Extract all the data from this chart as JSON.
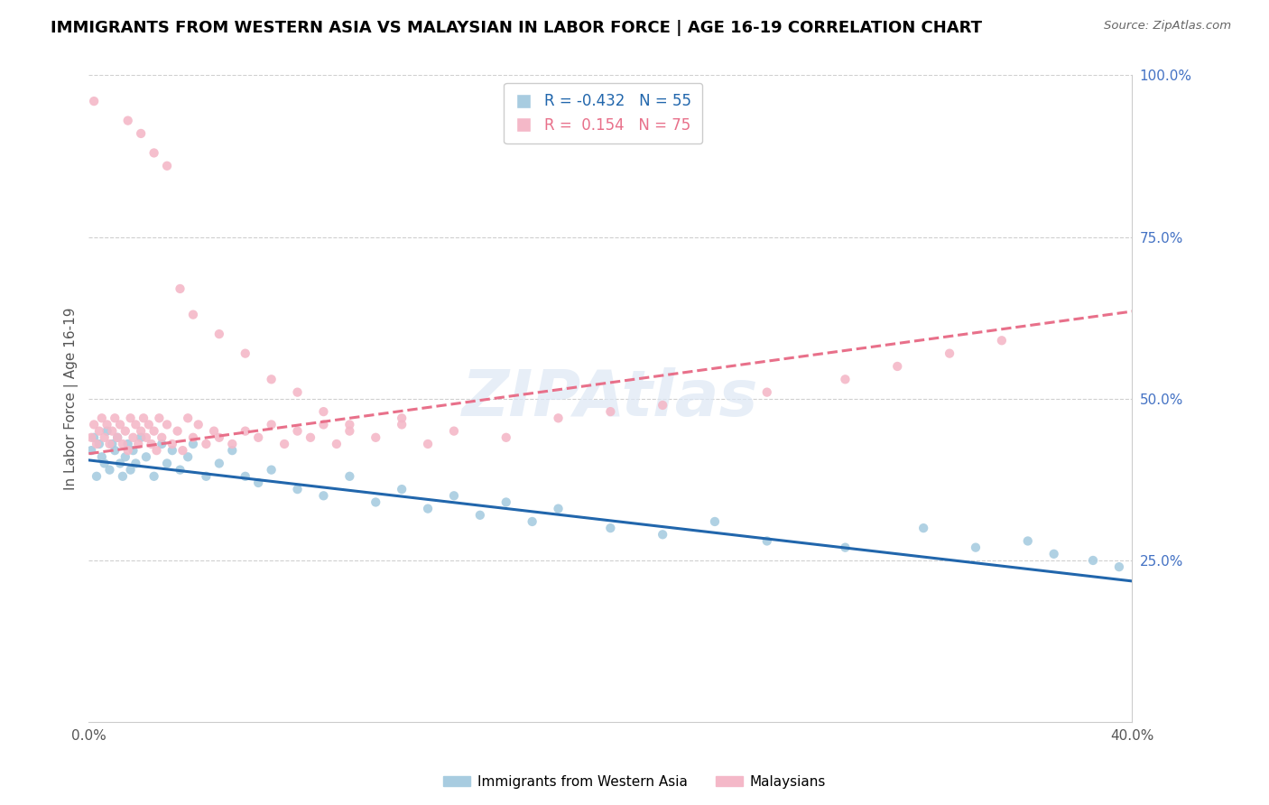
{
  "title": "IMMIGRANTS FROM WESTERN ASIA VS MALAYSIAN IN LABOR FORCE | AGE 16-19 CORRELATION CHART",
  "source_text": "Source: ZipAtlas.com",
  "ylabel": "In Labor Force | Age 16-19",
  "xlim": [
    0.0,
    0.4
  ],
  "ylim": [
    0.0,
    1.0
  ],
  "ytick_labels": [
    "",
    "25.0%",
    "50.0%",
    "75.0%",
    "100.0%"
  ],
  "blue_color": "#a8cce0",
  "pink_color": "#f4b8c8",
  "blue_line_color": "#2166ac",
  "pink_line_color": "#e8708a",
  "R_blue": -0.432,
  "N_blue": 55,
  "R_pink": 0.154,
  "N_pink": 75,
  "watermark": "ZIPAtlas",
  "legend_label_blue": "Immigrants from Western Asia",
  "legend_label_pink": "Malaysians",
  "blue_x": [
    0.001,
    0.002,
    0.003,
    0.004,
    0.005,
    0.006,
    0.007,
    0.008,
    0.009,
    0.01,
    0.011,
    0.012,
    0.013,
    0.014,
    0.015,
    0.016,
    0.017,
    0.018,
    0.02,
    0.022,
    0.025,
    0.028,
    0.03,
    0.032,
    0.035,
    0.038,
    0.04,
    0.045,
    0.05,
    0.055,
    0.06,
    0.065,
    0.07,
    0.08,
    0.09,
    0.1,
    0.11,
    0.12,
    0.13,
    0.14,
    0.15,
    0.16,
    0.17,
    0.18,
    0.2,
    0.22,
    0.24,
    0.26,
    0.29,
    0.32,
    0.34,
    0.36,
    0.37,
    0.385,
    0.395
  ],
  "blue_y": [
    0.42,
    0.44,
    0.38,
    0.43,
    0.41,
    0.4,
    0.45,
    0.39,
    0.43,
    0.42,
    0.44,
    0.4,
    0.38,
    0.41,
    0.43,
    0.39,
    0.42,
    0.4,
    0.44,
    0.41,
    0.38,
    0.43,
    0.4,
    0.42,
    0.39,
    0.41,
    0.43,
    0.38,
    0.4,
    0.42,
    0.38,
    0.37,
    0.39,
    0.36,
    0.35,
    0.38,
    0.34,
    0.36,
    0.33,
    0.35,
    0.32,
    0.34,
    0.31,
    0.33,
    0.3,
    0.29,
    0.31,
    0.28,
    0.27,
    0.3,
    0.27,
    0.28,
    0.26,
    0.25,
    0.24
  ],
  "pink_x": [
    0.001,
    0.002,
    0.003,
    0.004,
    0.005,
    0.006,
    0.007,
    0.008,
    0.009,
    0.01,
    0.011,
    0.012,
    0.013,
    0.014,
    0.015,
    0.016,
    0.017,
    0.018,
    0.019,
    0.02,
    0.021,
    0.022,
    0.023,
    0.024,
    0.025,
    0.026,
    0.027,
    0.028,
    0.03,
    0.032,
    0.034,
    0.036,
    0.038,
    0.04,
    0.042,
    0.045,
    0.048,
    0.05,
    0.055,
    0.06,
    0.065,
    0.07,
    0.075,
    0.08,
    0.085,
    0.09,
    0.095,
    0.1,
    0.11,
    0.12,
    0.13,
    0.14,
    0.16,
    0.18,
    0.2,
    0.22,
    0.26,
    0.29,
    0.31,
    0.33,
    0.35,
    0.002,
    0.015,
    0.02,
    0.025,
    0.03,
    0.035,
    0.04,
    0.05,
    0.06,
    0.07,
    0.08,
    0.09,
    0.1,
    0.12
  ],
  "pink_y": [
    0.44,
    0.46,
    0.43,
    0.45,
    0.47,
    0.44,
    0.46,
    0.43,
    0.45,
    0.47,
    0.44,
    0.46,
    0.43,
    0.45,
    0.42,
    0.47,
    0.44,
    0.46,
    0.43,
    0.45,
    0.47,
    0.44,
    0.46,
    0.43,
    0.45,
    0.42,
    0.47,
    0.44,
    0.46,
    0.43,
    0.45,
    0.42,
    0.47,
    0.44,
    0.46,
    0.43,
    0.45,
    0.44,
    0.43,
    0.45,
    0.44,
    0.46,
    0.43,
    0.45,
    0.44,
    0.46,
    0.43,
    0.45,
    0.44,
    0.46,
    0.43,
    0.45,
    0.44,
    0.47,
    0.48,
    0.49,
    0.51,
    0.53,
    0.55,
    0.57,
    0.59,
    0.96,
    0.93,
    0.91,
    0.88,
    0.86,
    0.67,
    0.63,
    0.6,
    0.57,
    0.53,
    0.51,
    0.48,
    0.46,
    0.47
  ]
}
